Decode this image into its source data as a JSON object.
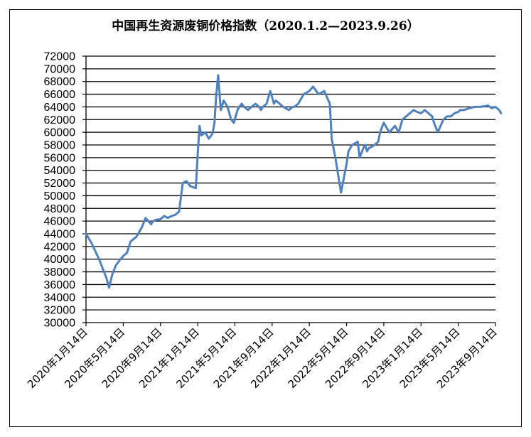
{
  "chart_data": {
    "type": "line",
    "title": "中国再生资源废铜价格指数（2020.1.2—2023.9.26）",
    "xlabel": "",
    "ylabel": "",
    "ylim": [
      30000,
      72000
    ],
    "ytick_step": 2000,
    "grid": "horizontal",
    "legend": "none",
    "line_color": "#4f81bd",
    "x_tick_labels": [
      "2020年1月14日",
      "2020年5月14日",
      "2020年9月14日",
      "2021年1月14日",
      "2021年5月14日",
      "2021年9月14日",
      "2022年1月14日",
      "2022年5月14日",
      "2022年9月14日",
      "2023年1月14日",
      "2023年5月14日",
      "2023年9月14日"
    ],
    "series": [
      {
        "x": [
          0,
          0.15,
          0.35,
          0.45,
          0.55,
          0.62,
          0.7,
          0.8,
          0.9,
          1.0,
          1.1,
          1.2,
          1.35,
          1.5,
          1.6,
          1.75,
          1.8,
          1.88,
          2.0,
          2.1,
          2.2,
          2.3,
          2.4,
          2.5,
          2.6,
          2.7,
          2.8,
          2.95,
          3.0,
          3.05,
          3.1,
          3.2,
          3.3,
          3.4,
          3.45,
          3.5,
          3.55,
          3.62,
          3.7,
          3.8,
          3.9,
          3.97,
          4.02,
          4.07,
          4.12,
          4.18,
          4.25,
          4.35,
          4.45,
          4.55,
          4.65,
          4.7,
          4.75,
          4.85,
          4.95,
          5.05,
          5.1,
          5.2,
          5.3,
          5.45,
          5.55,
          5.6,
          5.7,
          5.85,
          6.0,
          6.1,
          6.25,
          6.4,
          6.55,
          6.6,
          6.7,
          6.85,
          7.0,
          7.05,
          7.15,
          7.3,
          7.35,
          7.45,
          7.5,
          7.55,
          7.6,
          7.7,
          7.75,
          7.85,
          7.9,
          8.0,
          8.1,
          8.15,
          8.3,
          8.4,
          8.5,
          8.6,
          8.7,
          8.8,
          8.9,
          9.0,
          9.1,
          9.2,
          9.3,
          9.35,
          9.45,
          9.6,
          9.7,
          9.8,
          9.9,
          10.0,
          10.05,
          10.15,
          10.3,
          10.45,
          10.6,
          10.8,
          10.9,
          11.0,
          11.1,
          11.15
        ],
        "y": [
          44000,
          42500,
          40000,
          38500,
          37000,
          35500,
          37500,
          39000,
          39800,
          40500,
          41000,
          42800,
          43500,
          45000,
          46500,
          45500,
          46000,
          46200,
          46300,
          46800,
          46500,
          46800,
          47000,
          47500,
          52000,
          52300,
          51500,
          51200,
          56500,
          61000,
          59500,
          60000,
          59000,
          59800,
          61500,
          66000,
          69000,
          63500,
          65000,
          64000,
          62000,
          61500,
          62500,
          63500,
          64000,
          64500,
          64000,
          63500,
          64000,
          64500,
          64000,
          63500,
          64000,
          64500,
          66500,
          64500,
          65000,
          64500,
          64000,
          63500,
          64000,
          64000,
          64500,
          66000,
          66500,
          67200,
          66000,
          66500,
          64500,
          59000,
          56000,
          50500,
          55000,
          57000,
          58000,
          58500,
          56000,
          57500,
          58000,
          57000,
          57500,
          57800,
          58000,
          58500,
          60000,
          61500,
          60500,
          60000,
          61000,
          60000,
          62000,
          62500,
          63000,
          63500,
          63200,
          63000,
          63500,
          63000,
          62500,
          61500,
          60000,
          62000,
          62500,
          62500,
          63000,
          63200,
          63500,
          63500,
          63800,
          64000,
          64000,
          64200,
          63800,
          64000,
          63500,
          63000
        ]
      }
    ]
  }
}
